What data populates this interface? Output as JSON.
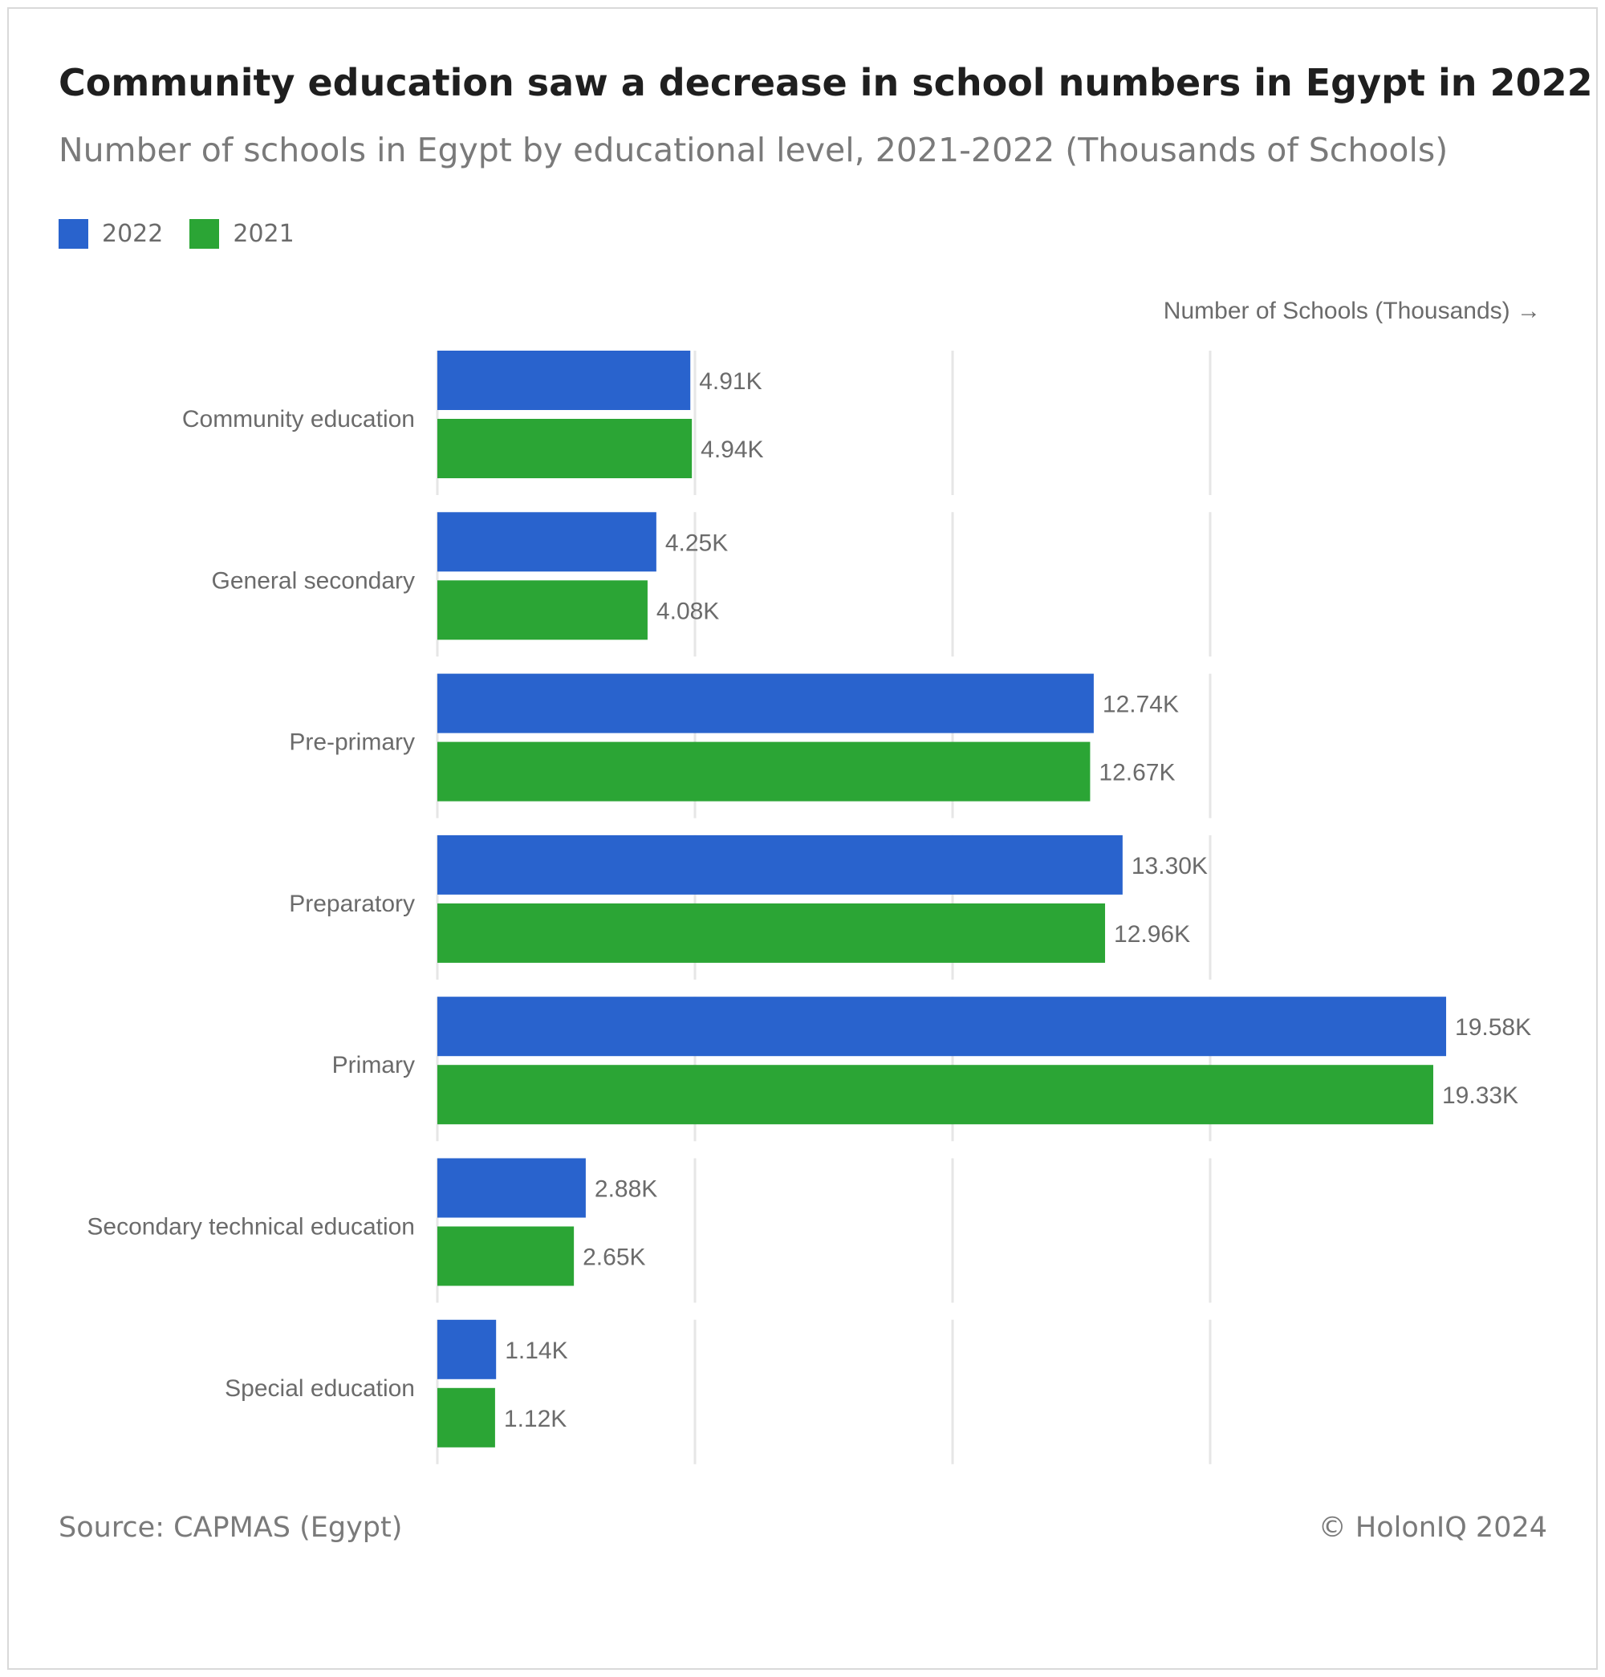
{
  "header": {
    "title": "Community education saw a decrease in school numbers in Egypt in 2022",
    "subtitle": "Number of schools in Egypt by educational level, 2021-2022 (Thousands of Schools)"
  },
  "legend": [
    {
      "label": "2022",
      "color": "#2963CD"
    },
    {
      "label": "2021",
      "color": "#2BA535"
    }
  ],
  "footer": {
    "source": "Source: CAPMAS (Egypt)",
    "credit": "© HolonIQ 2024"
  },
  "chart_data": {
    "type": "bar",
    "orientation": "horizontal",
    "title": "Community education saw a decrease in school numbers in Egypt in 2022",
    "subtitle": "Number of schools in Egypt by educational level, 2021-2022 (Thousands of Schools)",
    "xlabel": "Number of Schools (Thousands) →",
    "ylabel": "",
    "xlim": [
      0,
      20
    ],
    "grid": true,
    "legend_position": "top-left",
    "categories": [
      "Community education",
      "General secondary",
      "Pre-primary",
      "Preparatory",
      "Primary",
      "Secondary technical education",
      "Special education"
    ],
    "series": [
      {
        "name": "2022",
        "color": "#2963CD",
        "values": [
          4.91,
          4.25,
          12.74,
          13.3,
          19.58,
          2.88,
          1.14
        ],
        "labels": [
          "4.91K",
          "4.25K",
          "12.74K",
          "13.30K",
          "19.58K",
          "2.88K",
          "1.14K"
        ]
      },
      {
        "name": "2021",
        "color": "#2BA535",
        "values": [
          4.94,
          4.08,
          12.67,
          12.96,
          19.33,
          2.65,
          1.12
        ],
        "labels": [
          "4.94K",
          "4.08K",
          "12.67K",
          "12.96K",
          "19.33K",
          "2.65K",
          "1.12K"
        ]
      }
    ]
  }
}
